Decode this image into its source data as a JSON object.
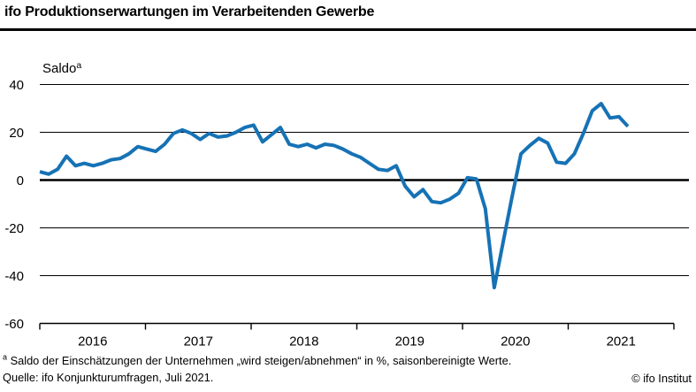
{
  "header": {
    "title": "ifo Produktionserwartungen im Verarbeitenden Gewerbe"
  },
  "chart_data": {
    "type": "line",
    "title": "ifo Produktionserwartungen im Verarbeitenden Gewerbe",
    "unit_label": "Saldo",
    "unit_label_superscript": "a",
    "frequency": "monthly",
    "start_month": "2016-01",
    "end_month": "2021-07",
    "x_tick_labels": [
      "2016",
      "2017",
      "2018",
      "2019",
      "2020",
      "2021"
    ],
    "y_ticks": [
      40,
      20,
      0,
      -20,
      -40,
      -60
    ],
    "ylim": [
      -60,
      45
    ],
    "grid": "horizontal",
    "zero_line": true,
    "legend_position": "none",
    "series": [
      {
        "name": "Produktionserwartungen (Saldo, saisonbereinigt)",
        "color": "#1672b5",
        "values": [
          3.5,
          2.5,
          4.5,
          10,
          6,
          7,
          6,
          7,
          8.5,
          9,
          11,
          14,
          13,
          12,
          15,
          19.5,
          21,
          19.5,
          17,
          19.5,
          18,
          18.5,
          20,
          22,
          23,
          16,
          19,
          22,
          15,
          14,
          15,
          13.5,
          15,
          14.5,
          13,
          11,
          9.5,
          7,
          4.5,
          4,
          6,
          -2.5,
          -7,
          -4,
          -9,
          -9.5,
          -8,
          -5.5,
          1,
          0.5,
          -12,
          -45,
          -26,
          -7,
          11,
          14.5,
          17.5,
          15.5,
          7.5,
          7,
          11,
          19.5,
          29,
          32,
          26,
          26.5,
          22.5
        ]
      }
    ]
  },
  "footnotes": {
    "note_marker": "a",
    "note": " Saldo der Einschätzungen der Unternehmen „wird steigen/abnehmen“ in %, saisonbereinigte Werte.",
    "source": "Quelle: ifo Konjunkturumfragen, Juli 2021.",
    "copyright": "© ifo Institut"
  }
}
